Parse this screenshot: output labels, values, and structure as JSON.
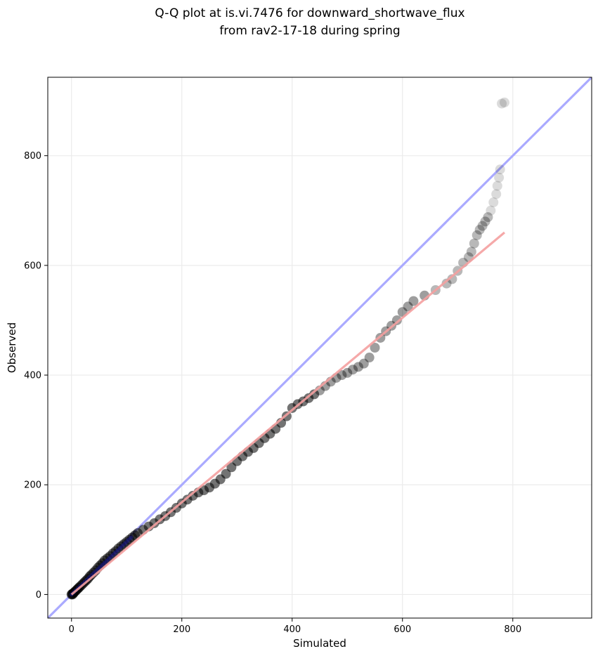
{
  "chart_data": {
    "type": "scatter",
    "title_line1": "Q-Q plot at is.vi.7476 for downward_shortwave_flux",
    "title_line2": "from rav2-17-18 during spring",
    "xlabel": "Simulated",
    "ylabel": "Observed",
    "xlim": [
      -43,
      943
    ],
    "ylim": [
      -43,
      943
    ],
    "xticks": [
      0,
      200,
      400,
      600,
      800
    ],
    "yticks": [
      0,
      200,
      400,
      600,
      800
    ],
    "grid": true,
    "reference_line": {
      "from": [
        -43,
        -43
      ],
      "to": [
        943,
        943
      ],
      "color": "#aaaaff"
    },
    "fit_line": {
      "from": [
        0,
        0
      ],
      "to": [
        785,
        660
      ],
      "color": "#f4a0a0"
    },
    "point_color": "#000000",
    "lower_range_highlight": "#1c1c8c",
    "series": [
      {
        "points": [
          [
            0,
            0
          ],
          [
            1,
            1
          ],
          [
            2,
            0
          ],
          [
            3,
            2
          ],
          [
            4,
            3
          ],
          [
            5,
            4
          ],
          [
            7,
            6
          ],
          [
            9,
            8
          ],
          [
            11,
            10
          ],
          [
            13,
            12
          ],
          [
            15,
            14
          ],
          [
            18,
            17
          ],
          [
            21,
            20
          ],
          [
            24,
            23
          ],
          [
            27,
            26
          ],
          [
            30,
            29
          ],
          [
            33,
            33
          ],
          [
            36,
            36
          ],
          [
            40,
            40
          ],
          [
            44,
            44
          ],
          [
            48,
            49
          ],
          [
            52,
            53
          ],
          [
            56,
            57
          ],
          [
            60,
            62
          ],
          [
            65,
            66
          ],
          [
            70,
            70
          ],
          [
            75,
            75
          ],
          [
            80,
            79
          ],
          [
            85,
            84
          ],
          [
            90,
            88
          ],
          [
            95,
            92
          ],
          [
            100,
            96
          ],
          [
            105,
            100
          ],
          [
            110,
            104
          ],
          [
            115,
            108
          ],
          [
            120,
            112
          ],
          [
            130,
            118
          ],
          [
            140,
            124
          ],
          [
            150,
            130
          ],
          [
            160,
            137
          ],
          [
            170,
            143
          ],
          [
            180,
            150
          ],
          [
            190,
            158
          ],
          [
            200,
            166
          ],
          [
            210,
            173
          ],
          [
            220,
            180
          ],
          [
            230,
            186
          ],
          [
            240,
            190
          ],
          [
            250,
            195
          ],
          [
            260,
            202
          ],
          [
            270,
            210
          ],
          [
            280,
            220
          ],
          [
            290,
            232
          ],
          [
            300,
            243
          ],
          [
            310,
            252
          ],
          [
            320,
            260
          ],
          [
            330,
            267
          ],
          [
            340,
            276
          ],
          [
            350,
            285
          ],
          [
            360,
            293
          ],
          [
            370,
            302
          ],
          [
            380,
            313
          ],
          [
            390,
            325
          ],
          [
            400,
            340
          ],
          [
            410,
            347
          ],
          [
            420,
            352
          ],
          [
            430,
            358
          ],
          [
            440,
            365
          ],
          [
            450,
            372
          ],
          [
            460,
            380
          ],
          [
            470,
            388
          ],
          [
            480,
            395
          ],
          [
            490,
            400
          ],
          [
            500,
            404
          ],
          [
            510,
            410
          ],
          [
            520,
            415
          ],
          [
            530,
            421
          ],
          [
            540,
            432
          ],
          [
            550,
            450
          ],
          [
            560,
            468
          ],
          [
            570,
            480
          ],
          [
            580,
            490
          ],
          [
            590,
            500
          ],
          [
            600,
            515
          ],
          [
            610,
            525
          ],
          [
            620,
            535
          ],
          [
            640,
            545
          ],
          [
            660,
            555
          ],
          [
            680,
            567
          ],
          [
            690,
            575
          ],
          [
            700,
            590
          ],
          [
            710,
            605
          ],
          [
            720,
            615
          ],
          [
            725,
            625
          ],
          [
            730,
            640
          ],
          [
            735,
            655
          ],
          [
            740,
            665
          ],
          [
            745,
            672
          ],
          [
            750,
            680
          ],
          [
            755,
            688
          ],
          [
            760,
            700
          ],
          [
            765,
            715
          ],
          [
            770,
            730
          ],
          [
            772,
            745
          ],
          [
            775,
            760
          ],
          [
            777,
            775
          ],
          [
            780,
            895
          ],
          [
            785,
            897
          ]
        ]
      }
    ]
  }
}
